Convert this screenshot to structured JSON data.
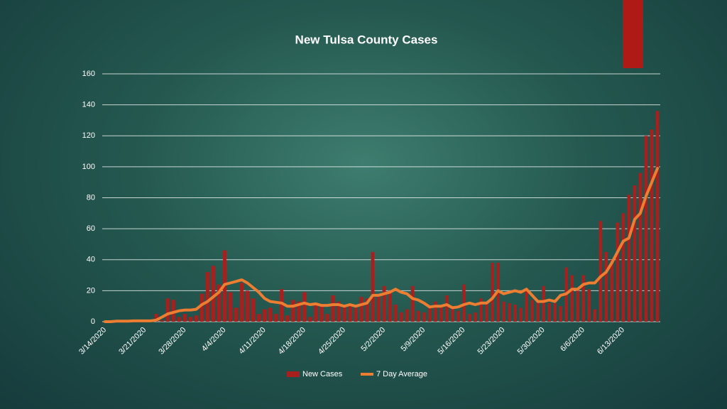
{
  "chart_data": {
    "type": "bar_line",
    "title": "New Tulsa County Cases",
    "categories": [
      "3/14/2020",
      null,
      null,
      null,
      null,
      null,
      null,
      "3/21/2020",
      null,
      null,
      null,
      null,
      null,
      null,
      "3/28/2020",
      null,
      null,
      null,
      null,
      null,
      null,
      "4/4/2020",
      null,
      null,
      null,
      null,
      null,
      null,
      "4/11/2020",
      null,
      null,
      null,
      null,
      null,
      null,
      "4/18/2020",
      null,
      null,
      null,
      null,
      null,
      null,
      "4/25/2020",
      null,
      null,
      null,
      null,
      null,
      null,
      "5/2/2020",
      null,
      null,
      null,
      null,
      null,
      null,
      "5/9/2020",
      null,
      null,
      null,
      null,
      null,
      null,
      "5/16/2020",
      null,
      null,
      null,
      null,
      null,
      null,
      "5/23/2020",
      null,
      null,
      null,
      null,
      null,
      null,
      "5/30/2020",
      null,
      null,
      null,
      null,
      null,
      null,
      "6/6/2020",
      null,
      null,
      null,
      null,
      null,
      null,
      "6/13/2020",
      null,
      null,
      null,
      null,
      null,
      null
    ],
    "series": [
      {
        "name": "New Cases",
        "color": "#a8201e",
        "values": [
          0,
          0,
          1,
          0,
          0,
          1,
          0,
          0,
          0,
          5,
          1,
          15,
          14,
          3,
          5,
          3,
          4,
          18,
          32,
          36,
          24,
          46,
          19,
          9,
          25,
          20,
          15,
          5,
          8,
          9,
          5,
          21,
          4,
          14,
          13,
          19,
          3,
          12,
          10,
          5,
          17,
          13,
          11,
          10,
          9,
          16,
          15,
          45,
          16,
          23,
          20,
          11,
          6,
          8,
          23,
          7,
          6,
          9,
          13,
          10,
          17,
          9,
          7,
          24,
          5,
          6,
          15,
          12,
          38,
          38,
          13,
          12,
          11,
          9,
          21,
          14,
          14,
          23,
          12,
          12,
          10,
          35,
          30,
          20,
          30,
          21,
          8,
          65,
          45,
          40,
          64,
          70,
          82,
          88,
          96,
          120,
          124,
          136
        ]
      },
      {
        "name": "7 Day Average",
        "color": "#ed7d31",
        "values": [
          0,
          0,
          0.3,
          0.3,
          0.3,
          0.5,
          0.5,
          0.5,
          0.5,
          1,
          3,
          5,
          6,
          7,
          7.5,
          7.5,
          8,
          11,
          13,
          16,
          19,
          24,
          25,
          26,
          27,
          25,
          22,
          19,
          15,
          13,
          12.5,
          12,
          10,
          10,
          11,
          12,
          11,
          11.5,
          10.5,
          10.5,
          11,
          11,
          10,
          11,
          10,
          11,
          12,
          17,
          17,
          18,
          19,
          21,
          19,
          18,
          15,
          14,
          12,
          9.5,
          10,
          10,
          11,
          9,
          9.5,
          11,
          12,
          11,
          12,
          12,
          15,
          20,
          18,
          19,
          20,
          19,
          21,
          17,
          13,
          13,
          14,
          13,
          17,
          18,
          21,
          21,
          24,
          25,
          25,
          29,
          32,
          38,
          45,
          52,
          54,
          66,
          70,
          81,
          90,
          99
        ]
      }
    ],
    "ylim": [
      0,
      160
    ],
    "yticks": [
      0,
      20,
      40,
      60,
      80,
      100,
      120,
      140,
      160
    ],
    "grid": true,
    "legend": "bottom"
  }
}
